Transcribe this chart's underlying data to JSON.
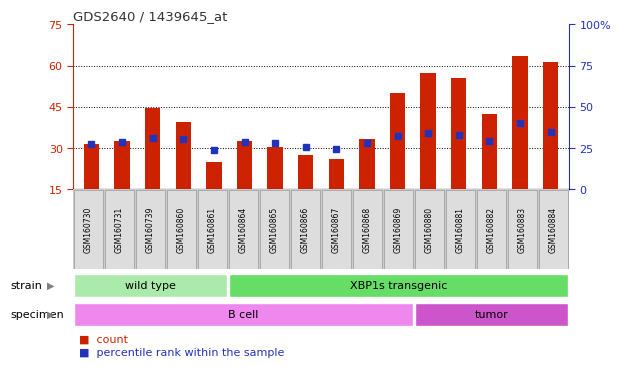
{
  "title": "GDS2640 / 1439645_at",
  "samples": [
    "GSM160730",
    "GSM160731",
    "GSM160739",
    "GSM160860",
    "GSM160861",
    "GSM160864",
    "GSM160865",
    "GSM160866",
    "GSM160867",
    "GSM160868",
    "GSM160869",
    "GSM160880",
    "GSM160881",
    "GSM160882",
    "GSM160883",
    "GSM160884"
  ],
  "counts": [
    31.5,
    32.5,
    44.5,
    39.5,
    25.0,
    32.5,
    30.5,
    27.5,
    26.0,
    33.5,
    50.0,
    57.5,
    55.5,
    42.5,
    63.5,
    61.5
  ],
  "percentile_right": [
    27.5,
    28.5,
    31.0,
    30.5,
    24.0,
    29.0,
    28.0,
    25.5,
    24.5,
    28.0,
    32.5,
    34.0,
    33.0,
    29.5,
    40.5,
    35.0
  ],
  "ylim_left": [
    15,
    75
  ],
  "ylim_right": [
    0,
    100
  ],
  "yticks_left": [
    15,
    30,
    45,
    60,
    75
  ],
  "yticks_right": [
    0,
    25,
    50,
    75,
    100
  ],
  "ytick_right_labels": [
    "0",
    "25",
    "50",
    "75",
    "100%"
  ],
  "bar_color": "#cc2200",
  "percentile_color": "#2233bb",
  "grid_color": "#000000",
  "hgrid_ticks": [
    30,
    45,
    60
  ],
  "strain_groups": [
    {
      "label": "wild type",
      "start": 0,
      "end": 5,
      "color": "#aaeaaa"
    },
    {
      "label": "XBP1s transgenic",
      "start": 5,
      "end": 16,
      "color": "#66dd66"
    }
  ],
  "specimen_groups": [
    {
      "label": "B cell",
      "start": 0,
      "end": 11,
      "color": "#ee88ee"
    },
    {
      "label": "tumor",
      "start": 11,
      "end": 16,
      "color": "#cc55cc"
    }
  ],
  "bg_color": "#ffffff",
  "tick_area_color": "#cccccc",
  "tick_area_border": "#999999"
}
